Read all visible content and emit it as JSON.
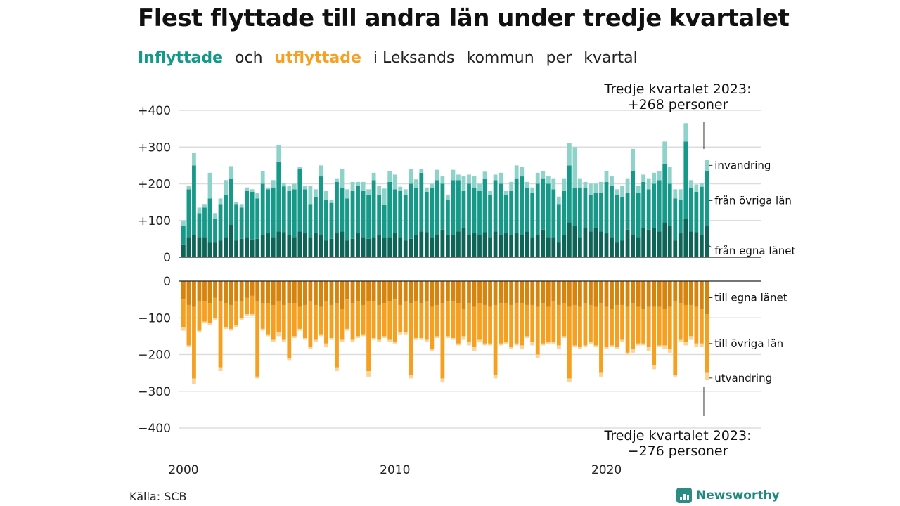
{
  "title": "Flest flyttade till andra län under tredje kvartalet",
  "subtitle": {
    "in_label": "Inflyttade",
    "and": "och",
    "out_label": "utflyttade",
    "rest_1": "i Leksands",
    "rest_2": "kommun",
    "rest_3": "per",
    "rest_4": "kvartal"
  },
  "source": "Källa: SCB",
  "brand": "Newsworthy",
  "colors": {
    "in_own": "#0f6458",
    "in_other": "#17998a",
    "in_immig": "#8ed3ca",
    "out_own": "#d6840d",
    "out_other": "#f5a021",
    "out_emig": "#f9d59a"
  },
  "chart_data": {
    "type": "bar",
    "x_start": "2000 Q1",
    "x_ticks": [
      "2000",
      "2010",
      "2020"
    ],
    "y_ticks": [
      "+400",
      "+300",
      "+200",
      "+100",
      "0",
      "0",
      "−100",
      "−200",
      "−300",
      "−400"
    ],
    "ylim_in": [
      0,
      400
    ],
    "ylim_out": [
      -400,
      0
    ],
    "grid": true,
    "annotation_top": [
      "Tredje kvartalet 2023:",
      "+268 personer"
    ],
    "annotation_bottom": [
      "Tredje kvartalet 2023:",
      "−276 personer"
    ],
    "series_in": [
      {
        "name": "från egna länet",
        "values": [
          35,
          55,
          60,
          55,
          55,
          40,
          40,
          45,
          55,
          88,
          45,
          50,
          55,
          48,
          50,
          60,
          65,
          55,
          70,
          68,
          60,
          55,
          70,
          65,
          55,
          65,
          60,
          45,
          50,
          65,
          70,
          45,
          50,
          65,
          55,
          50,
          55,
          60,
          52,
          55,
          65,
          55,
          45,
          50,
          60,
          70,
          68,
          55,
          60,
          75,
          60,
          60,
          70,
          80,
          60,
          65,
          60,
          68,
          55,
          70,
          60,
          65,
          60,
          65,
          60,
          70,
          55,
          60,
          75,
          55,
          55,
          40,
          60,
          95,
          85,
          55,
          80,
          70,
          80,
          70,
          65,
          55,
          40,
          45,
          75,
          60,
          55,
          80,
          75,
          80,
          70,
          95,
          85,
          45,
          65,
          105,
          70,
          68,
          62,
          85
        ]
      },
      {
        "name": "från övriga län",
        "values": [
          50,
          130,
          190,
          65,
          80,
          120,
          65,
          100,
          115,
          125,
          100,
          85,
          125,
          130,
          110,
          140,
          120,
          135,
          190,
          125,
          120,
          130,
          170,
          120,
          90,
          100,
          160,
          110,
          98,
          140,
          120,
          115,
          130,
          130,
          125,
          120,
          155,
          110,
          90,
          150,
          120,
          125,
          125,
          150,
          130,
          160,
          110,
          135,
          150,
          125,
          95,
          150,
          140,
          100,
          140,
          125,
          120,
          145,
          115,
          140,
          140,
          105,
          120,
          150,
          160,
          120,
          120,
          140,
          140,
          145,
          130,
          105,
          120,
          155,
          105,
          135,
          110,
          100,
          95,
          105,
          140,
          140,
          130,
          120,
          100,
          175,
          120,
          125,
          110,
          120,
          140,
          160,
          115,
          115,
          90,
          210,
          120,
          110,
          130,
          150
        ]
      },
      {
        "name": "invandring",
        "values": [
          15,
          10,
          35,
          15,
          10,
          70,
          15,
          15,
          40,
          35,
          5,
          10,
          10,
          7,
          15,
          35,
          5,
          20,
          45,
          10,
          15,
          15,
          5,
          10,
          50,
          20,
          30,
          25,
          8,
          10,
          50,
          25,
          25,
          10,
          25,
          15,
          20,
          25,
          45,
          30,
          40,
          12,
          15,
          40,
          22,
          10,
          12,
          10,
          28,
          20,
          15,
          28,
          15,
          40,
          25,
          30,
          20,
          20,
          10,
          15,
          30,
          10,
          25,
          35,
          25,
          15,
          15,
          30,
          20,
          20,
          30,
          20,
          35,
          60,
          110,
          25,
          15,
          30,
          25,
          30,
          30,
          25,
          15,
          30,
          40,
          60,
          20,
          20,
          30,
          30,
          25,
          60,
          45,
          25,
          30,
          50,
          20,
          20,
          10,
          30
        ]
      }
    ],
    "series_out": [
      {
        "name": "till egna länet",
        "values": [
          -50,
          -65,
          -70,
          -55,
          -55,
          -60,
          -45,
          -55,
          -60,
          -65,
          -55,
          -55,
          -45,
          -40,
          -55,
          -60,
          -60,
          -65,
          -55,
          -65,
          -60,
          -60,
          -70,
          -65,
          -55,
          -65,
          -70,
          -55,
          -65,
          -60,
          -75,
          -50,
          -60,
          -55,
          -65,
          -55,
          -55,
          -65,
          -60,
          -55,
          -50,
          -65,
          -55,
          -60,
          -55,
          -60,
          -55,
          -70,
          -65,
          -60,
          -55,
          -55,
          -60,
          -75,
          -60,
          -70,
          -60,
          -65,
          -70,
          -65,
          -60,
          -60,
          -65,
          -60,
          -60,
          -65,
          -65,
          -70,
          -60,
          -70,
          -55,
          -65,
          -60,
          -70,
          -65,
          -70,
          -60,
          -65,
          -70,
          -60,
          -70,
          -75,
          -65,
          -65,
          -70,
          -60,
          -70,
          -75,
          -70,
          -70,
          -70,
          -75,
          -70,
          -55,
          -60,
          -65,
          -65,
          -70,
          -75,
          -90
        ]
      },
      {
        "name": "till övriga län",
        "values": [
          -75,
          -110,
          -195,
          -80,
          -55,
          -55,
          -55,
          -180,
          -65,
          -65,
          -65,
          -45,
          -45,
          -50,
          -205,
          -70,
          -85,
          -95,
          -85,
          -95,
          -150,
          -90,
          -60,
          -90,
          -125,
          -95,
          -75,
          -115,
          -90,
          -175,
          -85,
          -80,
          -100,
          -95,
          -80,
          -190,
          -100,
          -95,
          -90,
          -105,
          -115,
          -75,
          -85,
          -195,
          -100,
          -95,
          -105,
          -115,
          -85,
          -205,
          -95,
          -100,
          -110,
          -75,
          -105,
          -110,
          -100,
          -105,
          -100,
          -190,
          -110,
          -105,
          -115,
          -110,
          -115,
          -85,
          -100,
          -130,
          -110,
          -95,
          -110,
          -110,
          -90,
          -195,
          -110,
          -110,
          -115,
          -100,
          -105,
          -190,
          -110,
          -100,
          -115,
          -95,
          -125,
          -125,
          -100,
          -95,
          -110,
          -160,
          -105,
          -100,
          -115,
          -200,
          -100,
          -100,
          -85,
          -100,
          -95,
          -160
        ]
      },
      {
        "name": "utvandring",
        "values": [
          -10,
          -5,
          -15,
          -5,
          -5,
          -5,
          -5,
          -10,
          -5,
          -5,
          -5,
          -5,
          -5,
          -5,
          -5,
          -5,
          -5,
          -5,
          -10,
          -5,
          -5,
          -5,
          -5,
          -5,
          -5,
          -5,
          -5,
          -10,
          -5,
          -10,
          -5,
          -5,
          -5,
          -5,
          -5,
          -15,
          -5,
          -5,
          -5,
          -5,
          -5,
          -5,
          -5,
          -10,
          -5,
          -5,
          -5,
          -5,
          -5,
          -10,
          -5,
          -5,
          -5,
          -10,
          -10,
          -10,
          -5,
          -5,
          -5,
          -10,
          -5,
          -5,
          -5,
          -5,
          -10,
          -5,
          -10,
          -10,
          -5,
          -5,
          -5,
          -10,
          -5,
          -10,
          -5,
          -5,
          -5,
          -5,
          -5,
          -10,
          -5,
          -5,
          -5,
          -5,
          -5,
          -10,
          -5,
          -5,
          -10,
          -10,
          -5,
          -10,
          -10,
          -5,
          -5,
          -10,
          -10,
          -10,
          -10,
          -20
        ]
      }
    ]
  }
}
